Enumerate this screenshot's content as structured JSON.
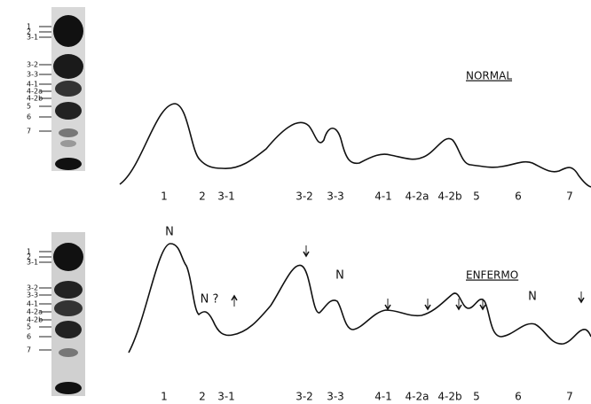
{
  "panels": [
    {
      "label": "NORMAL",
      "gel_labels": [
        "1",
        "2",
        "3-1",
        "3-2",
        "3-3",
        "4-1",
        "4-2a",
        "4-2b",
        "5",
        "6",
        "7"
      ],
      "peak_labels": [
        "1",
        "2",
        "3-1",
        "3-2",
        "3-3",
        "4-1",
        "4-2a",
        "4-2b",
        "5",
        "6",
        "7"
      ],
      "annotations": []
    },
    {
      "label": "ENFERMO",
      "gel_labels": [
        "1",
        "2",
        "3-1",
        "3-2",
        "3-3",
        "4-1",
        "4-2a",
        "4-2b",
        "5",
        "6",
        "7"
      ],
      "peak_labels": [
        "1",
        "2",
        "3-1",
        "3-2",
        "3-3",
        "4-1",
        "4-2a",
        "4-2b",
        "5",
        "6",
        "7"
      ],
      "annotations": [
        "N",
        "N ?",
        "N",
        "N"
      ]
    }
  ]
}
